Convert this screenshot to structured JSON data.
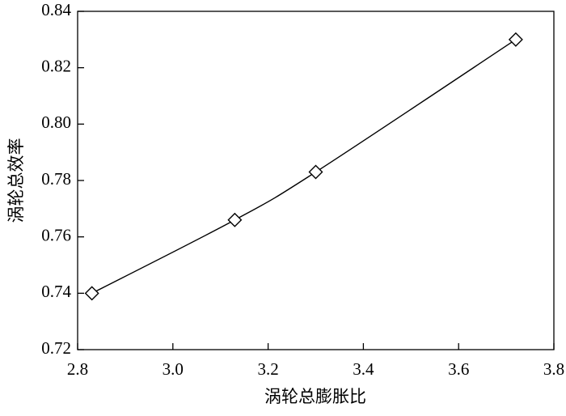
{
  "chart_data": {
    "type": "line",
    "x_label": "涡轮总膨胀比",
    "y_label": "涡轮总效率",
    "x": [
      2.83,
      3.13,
      3.3,
      3.72
    ],
    "series": [
      {
        "color": "#000000",
        "values": [
          0.74,
          0.766,
          0.783,
          0.83
        ]
      }
    ],
    "xlim": [
      2.8,
      3.8
    ],
    "xticks": [
      2.8,
      {
        "value": 3,
        "label": "3.0"
      },
      3.2,
      3.4,
      3.6,
      3.8
    ],
    "ylim": [
      0.72,
      0.84
    ],
    "yticks": [
      0.72,
      0.74,
      0.76,
      0.78,
      {
        "value": 0.8,
        "label": "0.80"
      },
      0.82,
      0.84
    ],
    "marker": "diamond",
    "smooth": true
  }
}
